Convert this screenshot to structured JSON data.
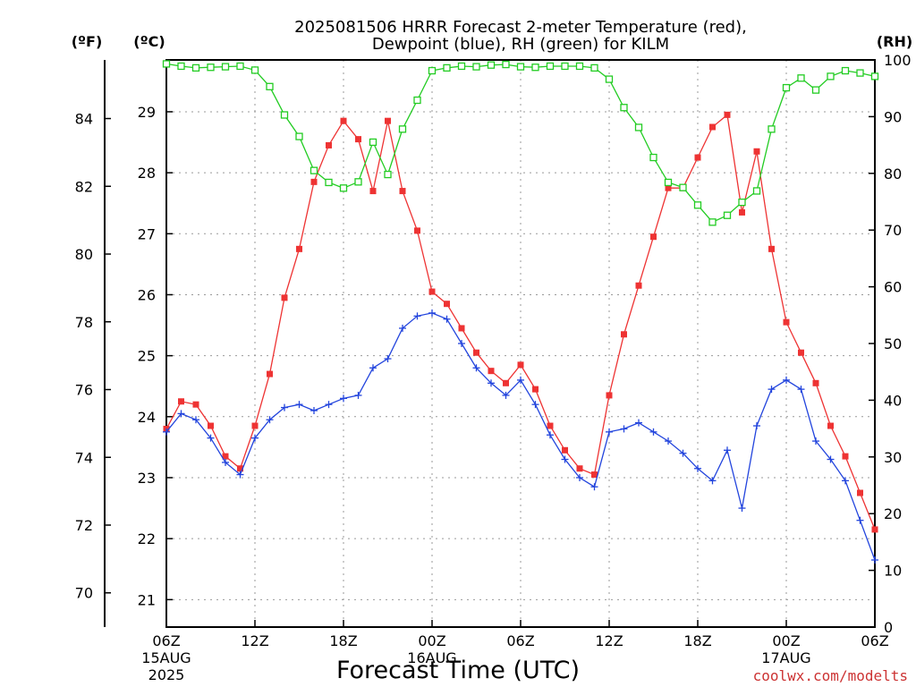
{
  "title_line1": "2025081506 HRRR Forecast 2-meter Temperature (red),",
  "title_line2": "Dewpoint (blue), RH (green) for KILM",
  "credit": "coolwx.com/modelts",
  "colors": {
    "temp": "#ee3333",
    "dewpoint": "#2244dd",
    "rh": "#22cc22",
    "grid": "#999999"
  },
  "chart_data": {
    "type": "line",
    "title": "2025081506 HRRR Forecast 2-meter Temperature (red), Dewpoint (blue), RH (green) for KILM",
    "xlabel": "Forecast Time (UTC)",
    "x_start": "2025-08-15 06Z",
    "x_step_hours": 1,
    "x_ticks": [
      {
        "hour": 0,
        "label": "06Z",
        "sub1": "15AUG",
        "sub2": "2025"
      },
      {
        "hour": 6,
        "label": "12Z",
        "sub1": "",
        "sub2": ""
      },
      {
        "hour": 12,
        "label": "18Z",
        "sub1": "",
        "sub2": ""
      },
      {
        "hour": 18,
        "label": "00Z",
        "sub1": "16AUG",
        "sub2": ""
      },
      {
        "hour": 24,
        "label": "06Z",
        "sub1": "",
        "sub2": ""
      },
      {
        "hour": 30,
        "label": "12Z",
        "sub1": "",
        "sub2": ""
      },
      {
        "hour": 36,
        "label": "18Z",
        "sub1": "",
        "sub2": ""
      },
      {
        "hour": 42,
        "label": "00Z",
        "sub1": "17AUG",
        "sub2": ""
      },
      {
        "hour": 48,
        "label": "06Z",
        "sub1": "",
        "sub2": ""
      }
    ],
    "xlim": [
      0,
      48
    ],
    "axes": {
      "fahrenheit": {
        "unit_label": "(ºF)",
        "ticks": [
          70,
          72,
          74,
          76,
          78,
          80,
          82,
          84
        ]
      },
      "celsius": {
        "unit_label": "(ºC)",
        "range": [
          20.55,
          29.85
        ],
        "ticks": [
          21,
          22,
          23,
          24,
          25,
          26,
          27,
          28,
          29
        ]
      },
      "rh": {
        "unit_label": "(RH)",
        "range": [
          0,
          100
        ],
        "ticks": [
          0,
          10,
          20,
          30,
          40,
          50,
          60,
          70,
          80,
          90,
          100
        ]
      }
    },
    "grid": true,
    "series": [
      {
        "name": "2-meter Temperature",
        "axis": "celsius",
        "marker": "filled-square",
        "values": [
          23.8,
          24.25,
          24.2,
          23.85,
          23.35,
          23.15,
          23.85,
          24.7,
          25.95,
          26.75,
          27.85,
          28.45,
          28.85,
          28.55,
          27.7,
          28.85,
          27.7,
          27.05,
          26.05,
          25.85,
          25.45,
          25.05,
          24.75,
          24.55,
          24.85,
          24.45,
          23.85,
          23.45,
          23.15,
          23.05,
          24.35,
          25.35,
          26.15,
          26.95,
          27.75,
          27.75,
          28.25,
          28.75,
          28.95,
          27.35,
          28.35,
          26.75,
          25.55,
          25.05,
          24.55,
          23.85,
          23.35,
          22.75,
          22.15
        ]
      },
      {
        "name": "Dewpoint",
        "axis": "celsius",
        "marker": "plus",
        "values": [
          23.75,
          24.05,
          23.95,
          23.65,
          23.25,
          23.05,
          23.65,
          23.95,
          24.15,
          24.2,
          24.1,
          24.2,
          24.3,
          24.35,
          24.8,
          24.95,
          25.45,
          25.65,
          25.7,
          25.6,
          25.2,
          24.8,
          24.55,
          24.35,
          24.6,
          24.2,
          23.7,
          23.3,
          23.0,
          22.85,
          23.75,
          23.8,
          23.9,
          23.75,
          23.6,
          23.4,
          23.15,
          22.95,
          23.45,
          22.5,
          23.85,
          24.45,
          24.6,
          24.45,
          23.6,
          23.3,
          22.95,
          22.3,
          21.65
        ]
      },
      {
        "name": "RH",
        "axis": "rh",
        "marker": "open-square",
        "values": [
          99.3,
          98.9,
          98.6,
          98.7,
          98.8,
          98.9,
          98.2,
          95.3,
          90.3,
          86.5,
          80.5,
          78.4,
          77.4,
          78.5,
          85.5,
          79.8,
          87.8,
          92.9,
          98.1,
          98.6,
          98.9,
          98.8,
          99.1,
          99.2,
          98.8,
          98.7,
          98.9,
          98.9,
          98.9,
          98.6,
          96.6,
          91.6,
          88.1,
          82.8,
          78.4,
          77.5,
          74.4,
          71.4,
          72.6,
          74.9,
          76.9,
          87.8,
          95.1,
          96.8,
          94.7,
          97.1,
          98.1,
          97.7,
          97.1
        ]
      }
    ]
  }
}
